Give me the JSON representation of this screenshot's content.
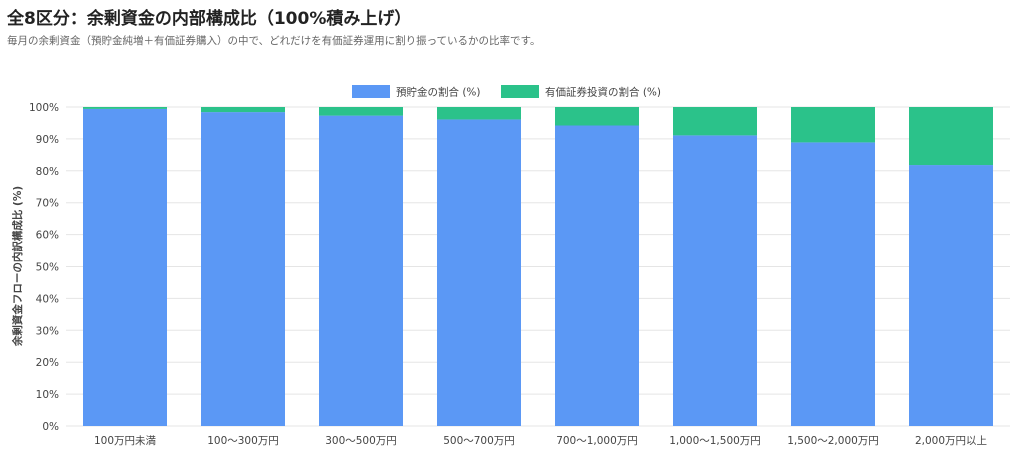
{
  "header": {
    "title": "全8区分：余剰資金の内部構成比（100%積み上げ）",
    "subtitle": "毎月の余剰資金（預貯金純増＋有価証券購入）の中で、どれだけを有価証券運用に割り振っているかの比率です。"
  },
  "chart_data": {
    "type": "bar",
    "stacked": true,
    "categories": [
      "100万円未満",
      "100〜300万円",
      "300〜500万円",
      "500〜700万円",
      "700〜1,000万円",
      "1,000〜1,500万円",
      "1,500〜2,000万円",
      "2,000万円以上"
    ],
    "series": [
      {
        "name": "預貯金の割合 (%)",
        "color": "#5b98f5",
        "values": [
          99.4,
          98.4,
          97.3,
          96.1,
          94.2,
          91.1,
          88.9,
          81.8
        ]
      },
      {
        "name": "有価証券投資の割合 (%)",
        "color": "#2bc28a",
        "values": [
          0.6,
          1.6,
          2.7,
          3.9,
          5.8,
          8.9,
          11.1,
          18.2
        ]
      }
    ],
    "ylabel": "余剰資金フローの内訳構成比 (%)",
    "xlabel": "",
    "ylim": [
      0,
      100
    ],
    "yticks": [
      "0%",
      "10%",
      "20%",
      "30%",
      "40%",
      "50%",
      "60%",
      "70%",
      "80%",
      "90%",
      "100%"
    ],
    "grid": true,
    "legend_position": "top-center"
  }
}
